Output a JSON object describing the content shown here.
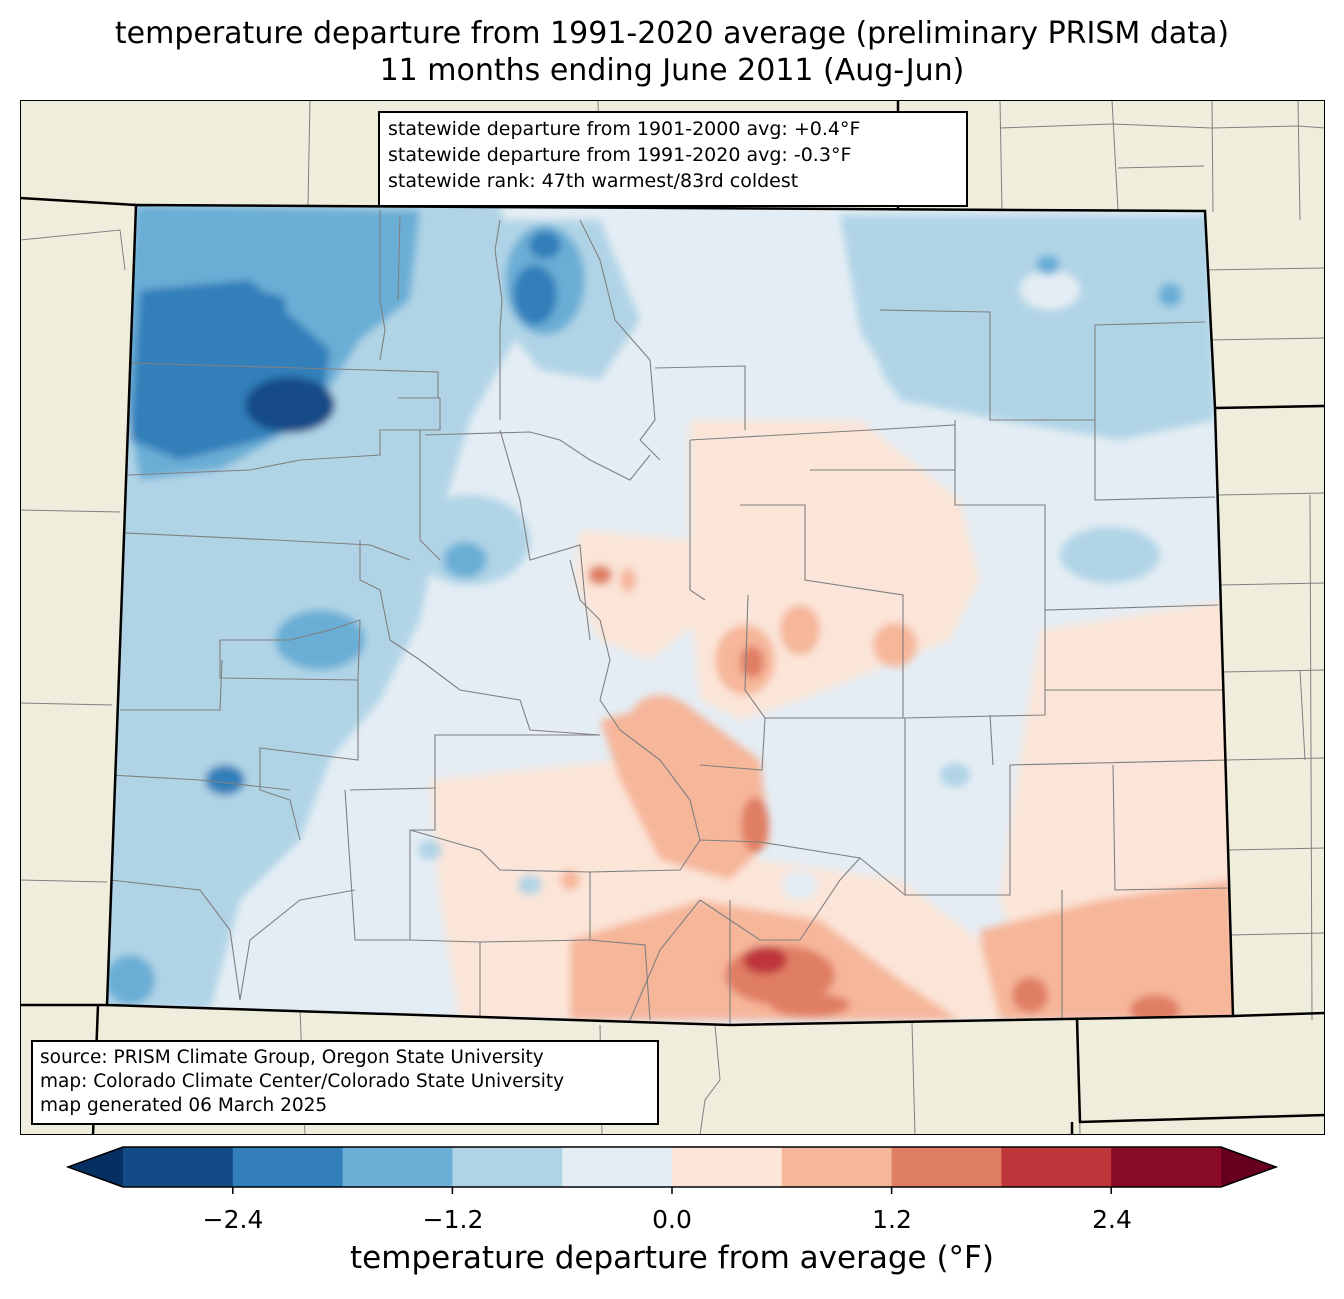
{
  "title": {
    "line1": "temperature departure from 1991-2020 average (preliminary PRISM data)",
    "line2": "11 months ending June 2011 (Aug-Jun)"
  },
  "stats_box": {
    "line1": "statewide departure from 1901-2000 avg: +0.4°F",
    "line2": "statewide departure from 1991-2020 avg: -0.3°F",
    "line3": "statewide rank: 47th warmest/83rd coldest"
  },
  "source_box": {
    "line1": "source: PRISM Climate Group, Oregon State University",
    "line2": "map: Colorado Climate Center/Colorado State University",
    "line3": "map generated 06 March 2025"
  },
  "colorbar": {
    "label": "temperature departure from average (°F)",
    "ticks": [
      "−2.4",
      "−1.2",
      "0.0",
      "1.2",
      "2.4"
    ],
    "tick_values": [
      -2.4,
      -1.2,
      0.0,
      1.2,
      2.4
    ],
    "bins": [
      -3.0,
      -2.4,
      -1.8,
      -1.2,
      -0.6,
      0.0,
      0.6,
      1.2,
      1.8,
      2.4,
      3.0
    ],
    "colors": [
      "#053061",
      "#134b87",
      "#327fba",
      "#6baed6",
      "#b0d4e6",
      "#e4edf4",
      "#fbe5d8",
      "#f6b69a",
      "#e07e64",
      "#bf363a",
      "#8a0b25",
      "#67001f"
    ]
  },
  "colors": {
    "land_background": "#efeedc",
    "state_border": "#000000",
    "county_border": "#808080"
  }
}
